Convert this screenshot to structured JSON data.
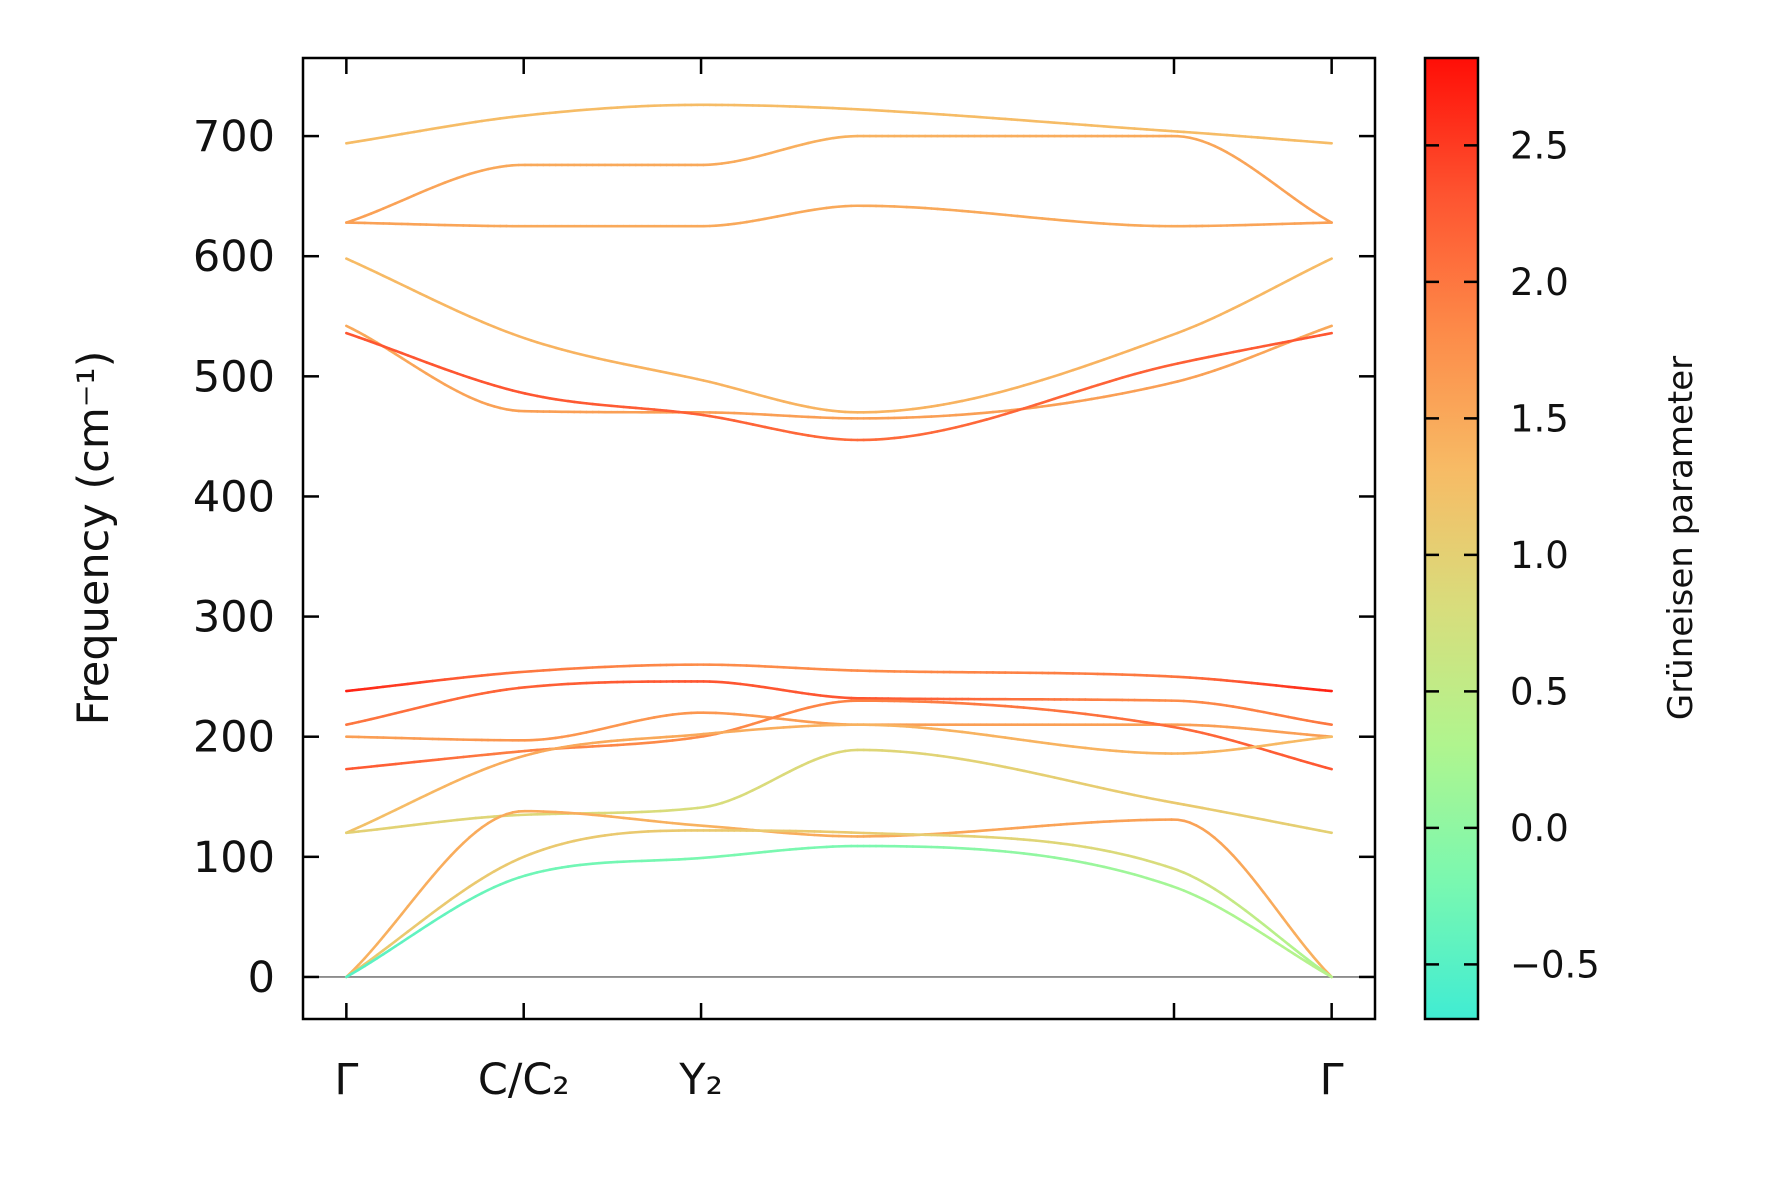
{
  "chart_data": {
    "type": "line",
    "title": "",
    "xlabel": "",
    "ylabel": "Frequency (cm⁻¹)",
    "ylim": [
      -35,
      765
    ],
    "yticks": [
      0,
      100,
      200,
      300,
      400,
      500,
      600,
      700
    ],
    "x_ticks": [
      {
        "label": "Γ",
        "x": 0.0
      },
      {
        "label": "C/C₂",
        "x": 0.18
      },
      {
        "label": "Y₂",
        "x": 0.36
      },
      {
        "label": "",
        "x": 0.84
      },
      {
        "label": "Γ",
        "x": 1.0
      }
    ],
    "x_range": [
      -0.044,
      1.044
    ],
    "zero_line": true,
    "colorbar": {
      "label": "Grüneisen parameter",
      "range": [
        -0.7,
        2.82
      ],
      "ticks": [
        -0.5,
        0.0,
        0.5,
        1.0,
        1.5,
        2.0,
        2.5
      ],
      "tick_labels": [
        "−0.5",
        "0.0",
        "0.5",
        "1.0",
        "1.5",
        "2.0",
        "2.5"
      ],
      "colormap": "rainbow-upper",
      "color_stops": [
        "#40ecd3",
        "#7af8b0",
        "#b0f58e",
        "#d8dd7c",
        "#f7bb65",
        "#fd8b49",
        "#fe5430",
        "#ff0e07"
      ]
    },
    "series": [
      {
        "x": [
          0,
          0.18,
          0.36,
          0.84,
          1.0
        ],
        "y": [
          694,
          717,
          726,
          704,
          694
        ],
        "g": [
          1.3,
          1.3,
          1.3,
          1.3,
          1.3
        ]
      },
      {
        "x": [
          0,
          0.18,
          0.36,
          0.52,
          0.84,
          1.0
        ],
        "y": [
          628,
          676,
          676,
          700,
          700,
          628
        ],
        "g": [
          1.6,
          1.5,
          1.5,
          1.4,
          1.5,
          1.6
        ]
      },
      {
        "x": [
          0,
          0.18,
          0.36,
          0.52,
          0.84,
          1.0
        ],
        "y": [
          628,
          625,
          625,
          642,
          625,
          628
        ],
        "g": [
          1.6,
          1.5,
          1.5,
          1.5,
          1.5,
          1.6
        ]
      },
      {
        "x": [
          0,
          0.18,
          0.36,
          0.52,
          0.84,
          1.0
        ],
        "y": [
          598,
          532,
          497,
          470,
          535,
          598
        ],
        "g": [
          1.3,
          1.4,
          1.4,
          1.4,
          1.4,
          1.3
        ]
      },
      {
        "x": [
          0,
          0.18,
          0.36,
          0.52,
          0.84,
          1.0
        ],
        "y": [
          542,
          471,
          470,
          465,
          495,
          542
        ],
        "g": [
          1.5,
          1.6,
          1.6,
          1.6,
          1.6,
          1.5
        ]
      },
      {
        "x": [
          0,
          0.18,
          0.36,
          0.52,
          0.84,
          1.0
        ],
        "y": [
          536,
          486,
          468,
          447,
          510,
          536
        ],
        "g": [
          2.3,
          2.3,
          2.2,
          2.1,
          2.2,
          2.3
        ]
      },
      {
        "x": [
          0,
          0.18,
          0.36,
          0.52,
          0.84,
          1.0
        ],
        "y": [
          238,
          254,
          260,
          255,
          250,
          238
        ],
        "g": [
          2.7,
          2.0,
          1.8,
          1.8,
          2.0,
          2.7
        ]
      },
      {
        "x": [
          0,
          0.18,
          0.36,
          0.52,
          0.84,
          1.0
        ],
        "y": [
          210,
          241,
          246,
          232,
          230,
          210
        ],
        "g": [
          2.0,
          2.2,
          2.3,
          2.3,
          1.8,
          2.0
        ]
      },
      {
        "x": [
          0,
          0.18,
          0.36,
          0.52,
          0.84,
          1.0
        ],
        "y": [
          200,
          197,
          220,
          210,
          210,
          200
        ],
        "g": [
          1.6,
          1.7,
          1.7,
          1.6,
          1.6,
          1.6
        ]
      },
      {
        "x": [
          0,
          0.18,
          0.36,
          0.52,
          0.84,
          1.0
        ],
        "y": [
          173,
          188,
          200,
          230,
          208,
          173
        ],
        "g": [
          2.3,
          1.9,
          1.8,
          1.9,
          2.1,
          2.3
        ]
      },
      {
        "x": [
          0,
          0.18,
          0.36,
          0.52,
          0.84,
          1.0
        ],
        "y": [
          120,
          184,
          202,
          210,
          186,
          200
        ],
        "g": [
          1.2,
          1.5,
          1.5,
          1.4,
          1.4,
          1.3
        ]
      },
      {
        "x": [
          0,
          0.18,
          0.36,
          0.52,
          0.84,
          1.0
        ],
        "y": [
          120,
          135,
          141,
          189,
          145,
          120
        ],
        "g": [
          1.0,
          0.9,
          0.8,
          0.9,
          1.1,
          1.0
        ]
      },
      {
        "x": [
          0,
          0.18,
          0.36,
          0.52,
          0.84,
          1.0
        ],
        "y": [
          0,
          138,
          126,
          117,
          131,
          0
        ],
        "g": [
          1.4,
          1.5,
          1.4,
          1.5,
          1.6,
          1.4
        ]
      },
      {
        "x": [
          0,
          0.18,
          0.36,
          0.52,
          0.84,
          1.0
        ],
        "y": [
          0,
          100,
          122,
          120,
          90,
          0
        ],
        "g": [
          1.1,
          1.1,
          1.1,
          1.1,
          0.8,
          0.2
        ]
      },
      {
        "x": [
          0,
          0.18,
          0.36,
          0.52,
          0.84,
          1.0
        ],
        "y": [
          0,
          84,
          99,
          109,
          75,
          0
        ],
        "g": [
          -0.5,
          -0.3,
          -0.2,
          -0.2,
          0.2,
          0.4
        ]
      }
    ]
  }
}
